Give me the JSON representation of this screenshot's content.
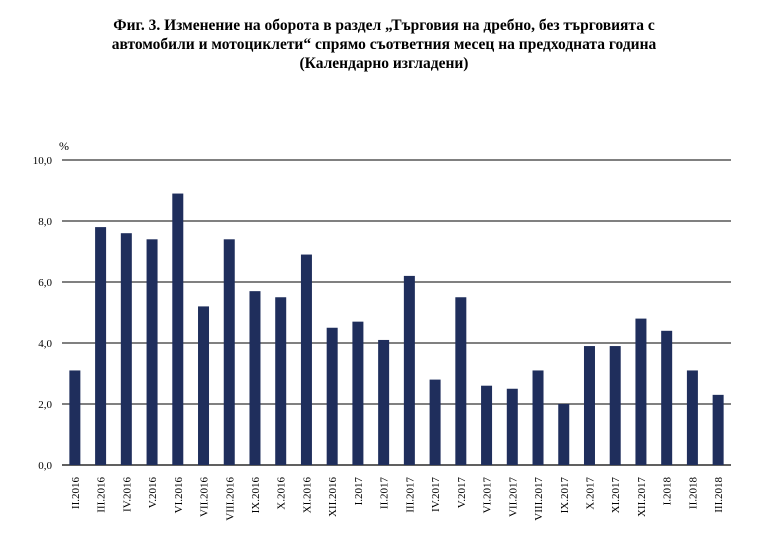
{
  "title_lines": [
    "Фиг. 3. Изменение на оборота в раздел „Търговия на дребно, без търговията с",
    "автомобили и мотоциклети“ спрямо съответния месец на предходната година",
    "(Календарно изгладени)"
  ],
  "chart_data": {
    "type": "bar",
    "title": "Фиг. 3. Изменение на оборота в раздел „Търговия на дребно, без търговията с автомобили и мотоциклети“ спрямо съответния месец на предходната година (Календарно изгладени)",
    "xlabel": "",
    "ylabel": "%",
    "ylim": [
      0,
      10
    ],
    "yticks": [
      "0,0",
      "2,0",
      "4,0",
      "6,0",
      "8,0",
      "10,0"
    ],
    "grid": true,
    "legend": "none",
    "bar_color": "#1f2e5c",
    "categories": [
      "II.2016",
      "III.2016",
      "IV.2016",
      "V.2016",
      "VI.2016",
      "VII.2016",
      "VIII.2016",
      "IX.2016",
      "X.2016",
      "XI.2016",
      "XII.2016",
      "I.2017",
      "II.2017",
      "III.2017",
      "IV.2017",
      "V.2017",
      "VI.2017",
      "VII.2017",
      "VIII.2017",
      "IX.2017",
      "X.2017",
      "XI.2017",
      "XII.2017",
      "I.2018",
      "II.2018",
      "III.2018"
    ],
    "values": [
      3.1,
      7.8,
      7.6,
      7.4,
      8.9,
      5.2,
      7.4,
      5.7,
      5.5,
      6.9,
      4.5,
      4.7,
      4.1,
      6.2,
      2.8,
      5.5,
      2.6,
      2.5,
      3.1,
      2.0,
      3.9,
      3.9,
      4.8,
      4.4,
      3.1,
      2.3
    ]
  }
}
